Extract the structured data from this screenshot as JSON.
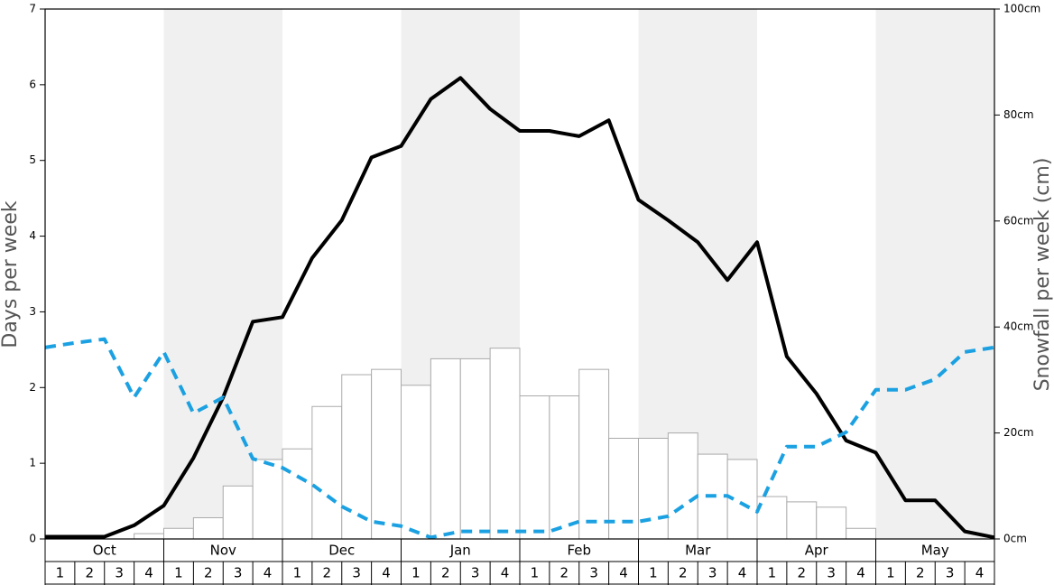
{
  "chart_data": {
    "type": "line",
    "y_label": "Days per week",
    "y2_label": "Snowfall per week (cm)",
    "months": [
      "Oct",
      "Nov",
      "Dec",
      "Jan",
      "Feb",
      "Mar",
      "Apr",
      "May"
    ],
    "weeks": [
      "1",
      "2",
      "3",
      "4",
      "1",
      "2",
      "3",
      "4",
      "1",
      "2",
      "3",
      "4",
      "1",
      "2",
      "3",
      "4",
      "1",
      "2",
      "3",
      "4",
      "1",
      "2",
      "3",
      "4",
      "1",
      "2",
      "3",
      "4",
      "1",
      "2",
      "3",
      "4"
    ],
    "xlim": [
      0,
      32
    ],
    "x": [
      0,
      1,
      2,
      3,
      4,
      5,
      6,
      7,
      8,
      9,
      10,
      11,
      12,
      13,
      14,
      15,
      16,
      17,
      18,
      19,
      20,
      21,
      22,
      23,
      24,
      25,
      26,
      27,
      28,
      29,
      30,
      31,
      32
    ],
    "ylim": [
      0,
      7
    ],
    "yticks": [
      0,
      1,
      2,
      3,
      4,
      5,
      6,
      7
    ],
    "y2lim": [
      0,
      100
    ],
    "y2ticks": [
      {
        "value": 0,
        "label": "0cm"
      },
      {
        "value": 20,
        "label": "20cm"
      },
      {
        "value": 40,
        "label": "40cm"
      },
      {
        "value": 60,
        "label": "60cm"
      },
      {
        "value": 80,
        "label": "80cm"
      },
      {
        "value": 100,
        "label": "100cm"
      }
    ],
    "bars": {
      "axis": "y2",
      "color": "#ffffff",
      "edge": "#aaaaaa",
      "values": [
        0,
        0,
        0,
        1,
        2,
        4,
        10,
        15,
        17,
        25,
        31,
        32,
        29,
        34,
        34,
        36,
        27,
        27,
        32,
        19,
        19,
        20,
        16,
        15,
        8,
        7,
        6,
        2,
        0,
        0,
        0,
        0
      ]
    },
    "series": [
      {
        "color": "#000000",
        "dashed": false,
        "values": [
          0.03,
          0.03,
          0.03,
          0.18,
          0.44,
          1.07,
          1.87,
          2.87,
          2.93,
          3.71,
          4.21,
          5.04,
          5.19,
          5.81,
          6.09,
          5.68,
          5.39,
          5.39,
          5.32,
          5.53,
          4.48,
          4.21,
          3.92,
          3.42,
          3.92,
          2.41,
          1.92,
          1.3,
          1.14,
          0.51,
          0.51,
          0.1,
          0.02
        ]
      },
      {
        "color": "#1ba1e2",
        "dashed": true,
        "values": [
          2.53,
          2.59,
          2.64,
          1.87,
          2.47,
          1.66,
          1.87,
          1.06,
          0.94,
          0.72,
          0.43,
          0.23,
          0.17,
          0.02,
          0.1,
          0.1,
          0.1,
          0.1,
          0.23,
          0.23,
          0.23,
          0.3,
          0.57,
          0.57,
          0.36,
          1.22,
          1.22,
          1.41,
          1.97,
          1.97,
          2.11,
          2.47,
          2.53
        ]
      }
    ]
  }
}
